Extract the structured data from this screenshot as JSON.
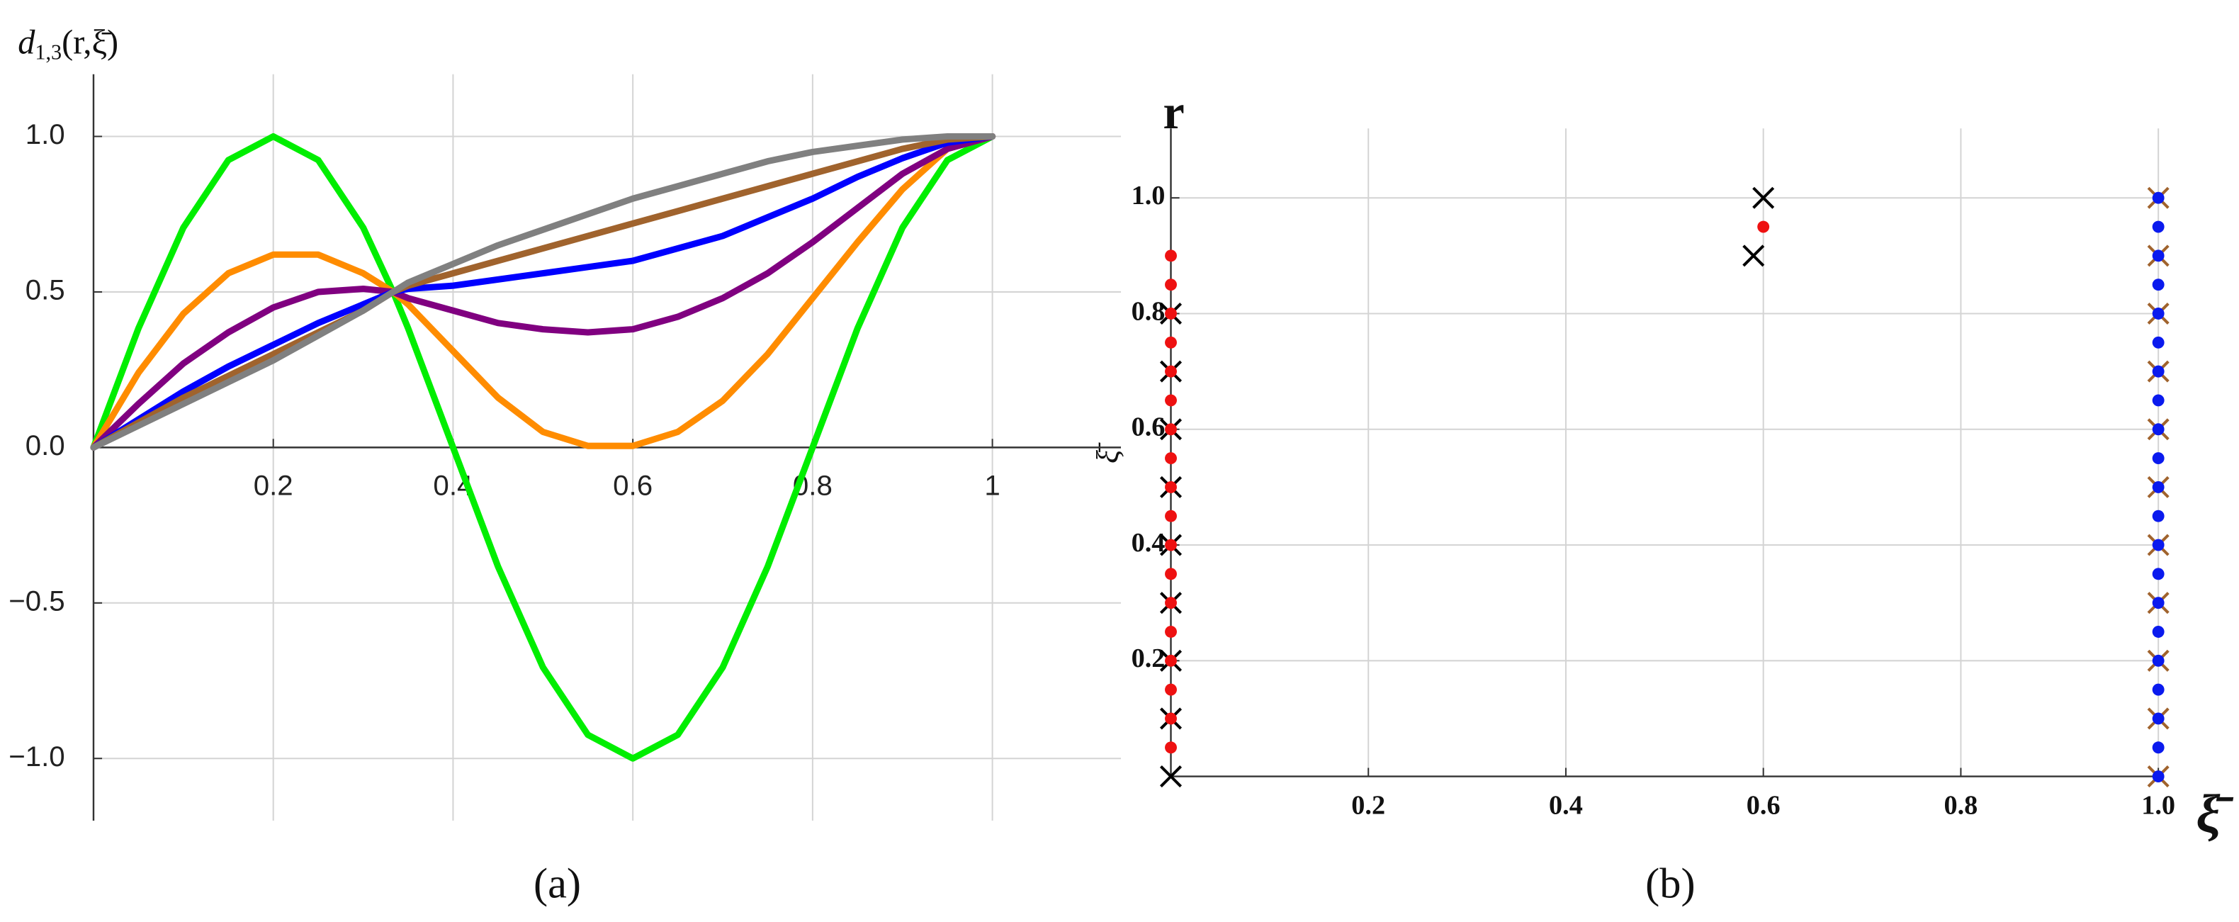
{
  "chart_data": [
    {
      "type": "line",
      "ylabel": {
        "main": "d",
        "sub": "1,3",
        "rest": "(r,ξ̄)"
      },
      "caption": "(a)",
      "x": [
        0,
        0.05,
        0.1,
        0.15,
        0.2,
        0.25,
        0.3,
        0.3333,
        0.35,
        0.4,
        0.45,
        0.5,
        0.55,
        0.6,
        0.65,
        0.7,
        0.75,
        0.8,
        0.85,
        0.9,
        0.95,
        1
      ],
      "series": [
        {
          "color": "#00ee00",
          "values": [
            0,
            0.383,
            0.707,
            0.924,
            1,
            0.924,
            0.707,
            0.5,
            0.383,
            0,
            -0.383,
            -0.707,
            -0.924,
            -1,
            -0.924,
            -0.707,
            -0.383,
            0,
            0.383,
            0.707,
            0.924,
            1
          ]
        },
        {
          "color": "#ff8c00",
          "values": [
            0,
            0.24,
            0.43,
            0.56,
            0.62,
            0.62,
            0.56,
            0.5,
            0.46,
            0.31,
            0.16,
            0.05,
            0.005,
            0.005,
            0.05,
            0.15,
            0.3,
            0.48,
            0.66,
            0.83,
            0.96,
            1
          ]
        },
        {
          "color": "#800080",
          "values": [
            0,
            0.14,
            0.27,
            0.37,
            0.45,
            0.5,
            0.51,
            0.5,
            0.48,
            0.44,
            0.4,
            0.38,
            0.37,
            0.38,
            0.42,
            0.48,
            0.56,
            0.66,
            0.77,
            0.88,
            0.96,
            1
          ]
        },
        {
          "color": "#0000ff",
          "values": [
            0,
            0.09,
            0.18,
            0.26,
            0.33,
            0.4,
            0.46,
            0.5,
            0.51,
            0.52,
            0.54,
            0.56,
            0.58,
            0.6,
            0.64,
            0.68,
            0.74,
            0.8,
            0.87,
            0.93,
            0.98,
            1
          ]
        },
        {
          "color": "#a0632d",
          "values": [
            0,
            0.08,
            0.16,
            0.23,
            0.3,
            0.37,
            0.44,
            0.5,
            0.52,
            0.56,
            0.6,
            0.64,
            0.68,
            0.72,
            0.76,
            0.8,
            0.84,
            0.88,
            0.92,
            0.96,
            0.99,
            1
          ]
        },
        {
          "color": "#808080",
          "values": [
            0,
            0.07,
            0.14,
            0.21,
            0.28,
            0.36,
            0.44,
            0.5,
            0.53,
            0.59,
            0.65,
            0.7,
            0.75,
            0.8,
            0.84,
            0.88,
            0.92,
            0.95,
            0.97,
            0.99,
            1.0,
            1
          ]
        }
      ],
      "xlim": [
        0,
        1.143
      ],
      "ylim": [
        -1.2,
        1.2
      ],
      "xticks": [
        0.2,
        0.4,
        0.6,
        0.8,
        1
      ],
      "yticks": [
        {
          "value": -1,
          "label": "−1.0"
        },
        {
          "value": -0.5,
          "label": "−0.5"
        },
        {
          "value": 0,
          "label": "0.0"
        },
        {
          "value": 0.5,
          "label": "0.5"
        },
        {
          "value": 1,
          "label": "1.0"
        }
      ],
      "grid": true
    },
    {
      "type": "scatter",
      "xlabel": "ξ̄",
      "ylabel": "r",
      "annotations": [
        "ξ̄"
      ],
      "caption": "(b)",
      "series": [
        {
          "color": "#a0632d",
          "marker": "x",
          "x": [
            1,
            1,
            1,
            1,
            1,
            1,
            1,
            1,
            1,
            1,
            1
          ],
          "y": [
            0,
            0.1,
            0.2,
            0.3,
            0.4,
            0.5,
            0.6,
            0.7,
            0.8,
            0.9,
            1
          ]
        },
        {
          "color": "#000000",
          "marker": "x",
          "x": [
            0,
            0,
            0,
            0,
            0,
            0,
            0,
            0,
            0,
            0.6,
            0.59
          ],
          "y": [
            0,
            0.1,
            0.2,
            0.3,
            0.4,
            0.5,
            0.6,
            0.7,
            0.8,
            1,
            0.9
          ]
        },
        {
          "color": "#ee1111",
          "marker": "dot",
          "x": [
            0,
            0,
            0,
            0,
            0,
            0,
            0,
            0,
            0,
            0,
            0,
            0,
            0,
            0,
            0,
            0,
            0,
            0,
            0.6
          ],
          "y": [
            0.05,
            0.1,
            0.15,
            0.2,
            0.25,
            0.3,
            0.35,
            0.4,
            0.45,
            0.5,
            0.55,
            0.6,
            0.65,
            0.7,
            0.75,
            0.8,
            0.85,
            0.9,
            0.95
          ]
        },
        {
          "color": "#0a1aee",
          "marker": "dot",
          "x": [
            1,
            1,
            1,
            1,
            1,
            1,
            1,
            1,
            1,
            1,
            1,
            1,
            1,
            1,
            1,
            1,
            1,
            1,
            1,
            1,
            1
          ],
          "y": [
            0,
            0.05,
            0.1,
            0.15,
            0.2,
            0.25,
            0.3,
            0.35,
            0.4,
            0.45,
            0.5,
            0.55,
            0.6,
            0.65,
            0.7,
            0.75,
            0.8,
            0.85,
            0.9,
            0.95,
            1
          ]
        }
      ],
      "xlim": [
        0,
        1
      ],
      "ylim": [
        0,
        1.12
      ],
      "xticks": [
        0.2,
        0.4,
        0.6,
        0.8,
        {
          "value": 1,
          "label": "1.0"
        }
      ],
      "yticks": [
        0.2,
        0.4,
        0.6,
        0.8,
        {
          "value": 1,
          "label": "1.0"
        }
      ],
      "grid": true
    }
  ]
}
